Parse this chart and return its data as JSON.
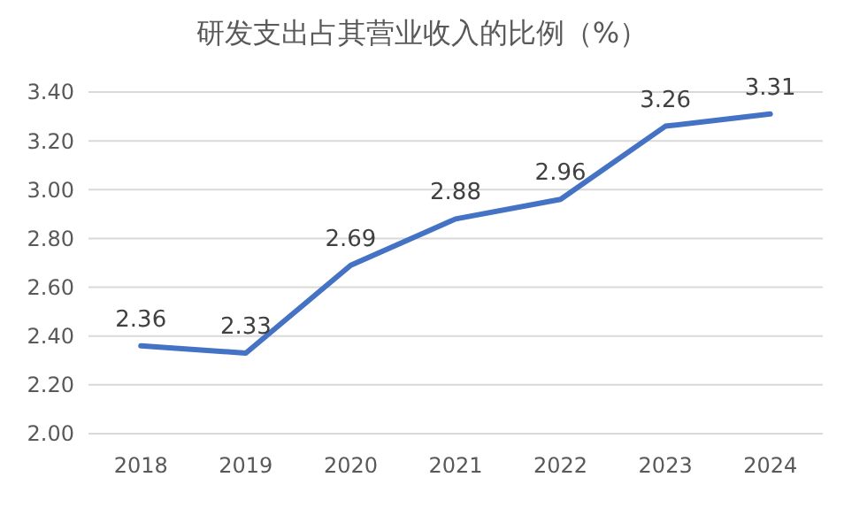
{
  "chart_data": {
    "type": "line",
    "title": "研发支出占其营业收入的比例（%）",
    "categories": [
      "2018",
      "2019",
      "2020",
      "2021",
      "2022",
      "2023",
      "2024"
    ],
    "series": [
      {
        "color": "#4472c4",
        "values": [
          2.36,
          2.33,
          2.69,
          2.88,
          2.96,
          3.26,
          3.31
        ]
      }
    ],
    "ylim": [
      2,
      3.4
    ],
    "yticks": [
      {
        "value": 2,
        "label": "2.00"
      },
      {
        "value": 2.2,
        "label": "2.20"
      },
      {
        "value": 2.4,
        "label": "2.40"
      },
      {
        "value": 2.6,
        "label": "2.60"
      },
      {
        "value": 2.8,
        "label": "2.80"
      },
      {
        "value": 3,
        "label": "3.00"
      },
      {
        "value": 3.2,
        "label": "3.20"
      },
      {
        "value": 3.4,
        "label": "3.40"
      }
    ],
    "grid": "y",
    "data_labels": true,
    "marker": "none",
    "line_style": "solid"
  }
}
